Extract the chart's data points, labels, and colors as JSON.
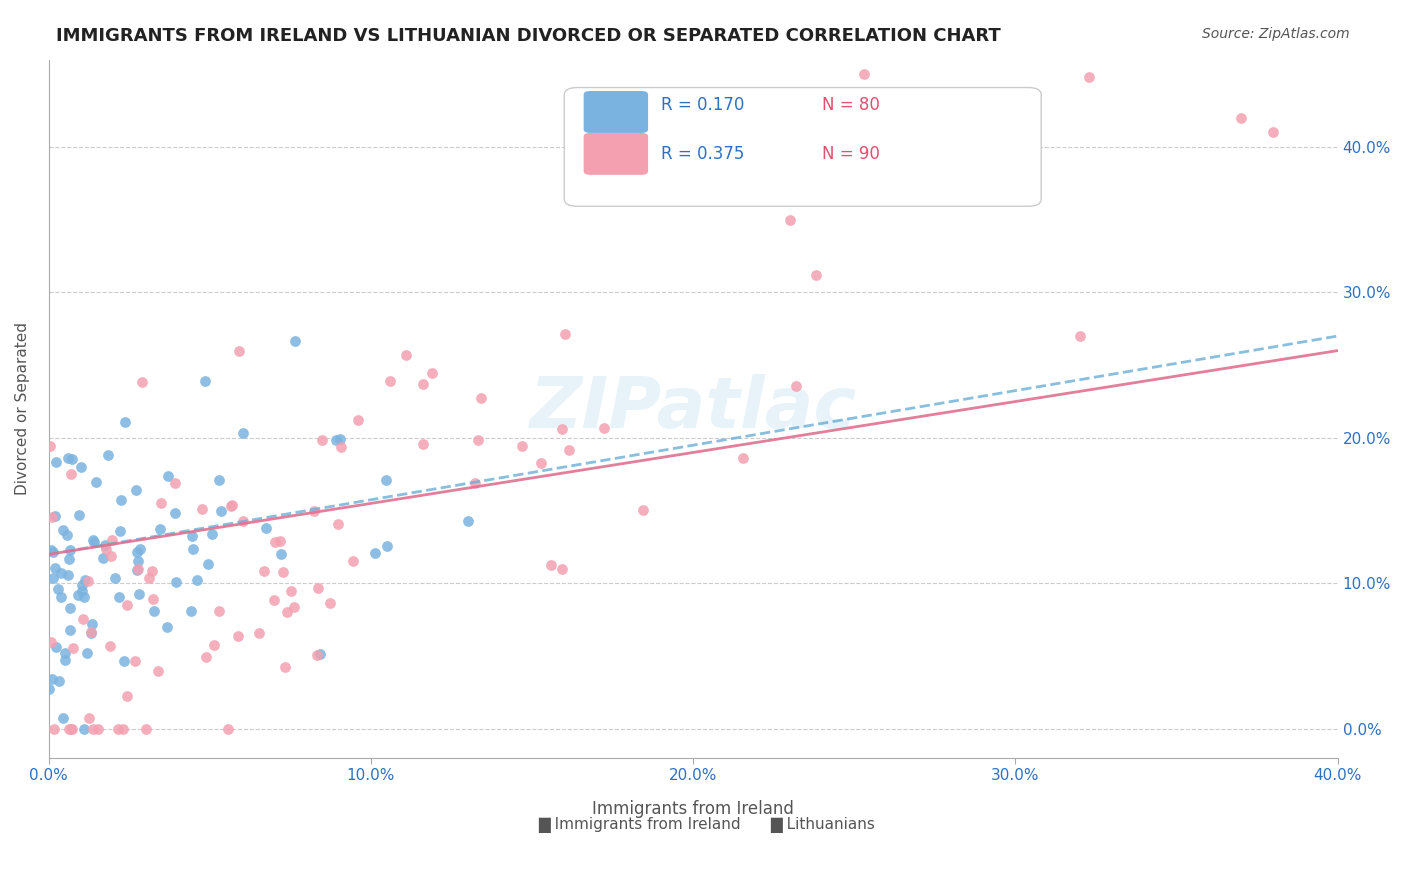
{
  "title": "IMMIGRANTS FROM IRELAND VS LITHUANIAN DIVORCED OR SEPARATED CORRELATION CHART",
  "source": "Source: ZipAtlas.com",
  "xlabel_bottom": "",
  "ylabel": "Divorced or Separated",
  "x_min": 0.0,
  "x_max": 0.4,
  "y_min": -0.02,
  "y_max": 0.46,
  "x_ticks": [
    0.0,
    0.1,
    0.2,
    0.3,
    0.4
  ],
  "x_tick_labels": [
    "0.0%",
    "10.0%",
    "20.0%",
    "30.0%",
    "40.0%"
  ],
  "y_ticks": [
    0.0,
    0.1,
    0.2,
    0.3,
    0.4
  ],
  "y_tick_labels": [
    "",
    "10.0%",
    "20.0%",
    "30.0%",
    "40.0%"
  ],
  "series1_color": "#7ab3e0",
  "series2_color": "#f4a0b0",
  "series1_label": "Immigrants from Ireland",
  "series2_label": "Lithuanians",
  "series1_R": 0.17,
  "series1_N": 80,
  "series2_R": 0.375,
  "series2_N": 90,
  "trend1_color": "#6baed6",
  "trend2_color": "#e07090",
  "watermark": "ZIPatlас",
  "legend_R_color": "#3070c0",
  "legend_N_color": "#e05070",
  "background_color": "#ffffff",
  "grid_color": "#cccccc",
  "title_fontsize": 13,
  "axis_label_fontsize": 11,
  "tick_fontsize": 11,
  "legend_fontsize": 12,
  "source_fontsize": 10
}
